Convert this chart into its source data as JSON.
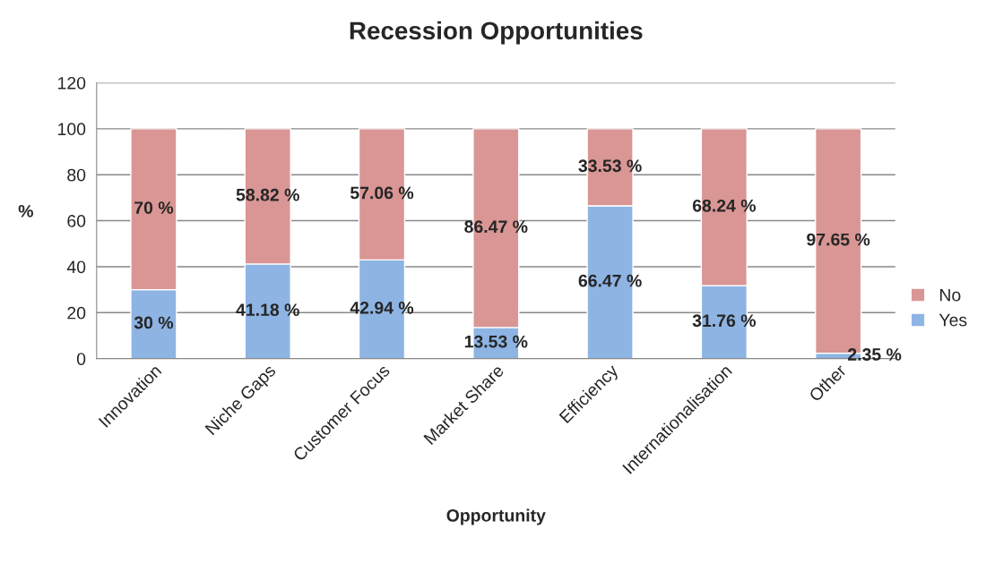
{
  "chart_data": {
    "type": "bar",
    "title": "Recession Opportunities",
    "xlabel": "Opportunity",
    "ylabel": "%",
    "categories": [
      "Innovation",
      "Niche Gaps",
      "Customer Focus",
      "Market Share",
      "Efficiency",
      "Internationalisation",
      "Other"
    ],
    "stacked": true,
    "series": [
      {
        "name": "Yes",
        "color": "#8eb4e3",
        "values": [
          30,
          41.18,
          42.94,
          13.53,
          66.47,
          31.76,
          2.35
        ],
        "value_labels": [
          "30 %",
          "41.18 %",
          "42.94 %",
          "13.53 %",
          "66.47 %",
          "31.76 %",
          "2.35 %"
        ]
      },
      {
        "name": "No",
        "color": "#d99694",
        "values": [
          70,
          58.82,
          57.06,
          86.47,
          33.53,
          68.24,
          97.65
        ],
        "value_labels": [
          "70 %",
          "58.82 %",
          "57.06 %",
          "86.47 %",
          "33.53 %",
          "68.24 %",
          "97.65 %"
        ]
      }
    ],
    "ylim": [
      0,
      120
    ],
    "yticks": [
      0,
      20,
      40,
      60,
      80,
      100,
      120
    ],
    "grid": "y",
    "legend": "right"
  }
}
